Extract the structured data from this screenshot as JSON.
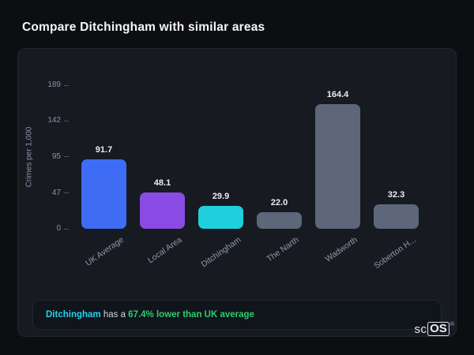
{
  "page": {
    "title": "Compare Ditchingham with similar areas"
  },
  "chart_data": {
    "type": "bar",
    "title": "",
    "ylabel": "Crimes per 1,000",
    "xlabel": "",
    "yticks": [
      189,
      142,
      95,
      47,
      0
    ],
    "ylim": [
      0,
      189
    ],
    "grid": false,
    "legend": false,
    "categories": [
      "UK Average",
      "Local Area",
      "Ditchingham",
      "The Narth",
      "Wadworth",
      "Soberton H..."
    ],
    "values": [
      91.7,
      48.1,
      29.9,
      22.0,
      164.4,
      32.3
    ],
    "value_labels": [
      "91.7",
      "48.1",
      "29.9",
      "22.0",
      "164.4",
      "32.3"
    ],
    "bar_colors": [
      "#3e6cf4",
      "#8a4ae4",
      "#1fd0dc",
      "#5d6779",
      "#5d6779",
      "#5d6779"
    ]
  },
  "note": {
    "area": "Ditchingham",
    "middle": " has a ",
    "highlight": "67.4% lower than UK average"
  },
  "logo": {
    "sc": "sc",
    "os": "OS",
    "reg": "®"
  }
}
